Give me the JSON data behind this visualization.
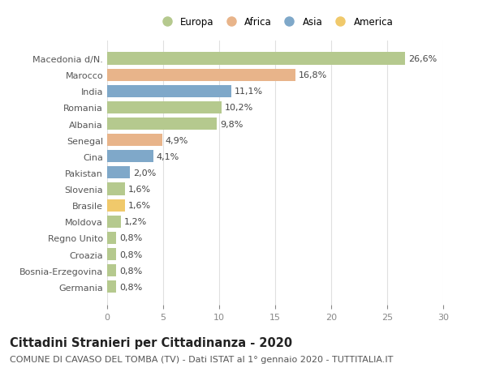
{
  "categories": [
    "Macedonia d/N.",
    "Marocco",
    "India",
    "Romania",
    "Albania",
    "Senegal",
    "Cina",
    "Pakistan",
    "Slovenia",
    "Brasile",
    "Moldova",
    "Regno Unito",
    "Croazia",
    "Bosnia-Erzegovina",
    "Germania"
  ],
  "values": [
    26.6,
    16.8,
    11.1,
    10.2,
    9.8,
    4.9,
    4.1,
    2.0,
    1.6,
    1.6,
    1.2,
    0.8,
    0.8,
    0.8,
    0.8
  ],
  "labels": [
    "26,6%",
    "16,8%",
    "11,1%",
    "10,2%",
    "9,8%",
    "4,9%",
    "4,1%",
    "2,0%",
    "1,6%",
    "1,6%",
    "1,2%",
    "0,8%",
    "0,8%",
    "0,8%",
    "0,8%"
  ],
  "continents": [
    "Europa",
    "Africa",
    "Asia",
    "Europa",
    "Europa",
    "Africa",
    "Asia",
    "Asia",
    "Europa",
    "America",
    "Europa",
    "Europa",
    "Europa",
    "Europa",
    "Europa"
  ],
  "continent_colors": {
    "Europa": "#b5c98e",
    "Africa": "#e8b48a",
    "Asia": "#7fa8c9",
    "America": "#f0c96b"
  },
  "legend_order": [
    "Europa",
    "Africa",
    "Asia",
    "America"
  ],
  "title": "Cittadini Stranieri per Cittadinanza - 2020",
  "subtitle": "COMUNE DI CAVASO DEL TOMBA (TV) - Dati ISTAT al 1° gennaio 2020 - TUTTITALIA.IT",
  "xlim": [
    0,
    30
  ],
  "xticks": [
    0,
    5,
    10,
    15,
    20,
    25,
    30
  ],
  "background_color": "#ffffff",
  "grid_color": "#e0e0e0",
  "title_fontsize": 10.5,
  "subtitle_fontsize": 8.0,
  "label_fontsize": 8.0,
  "tick_fontsize": 8.0,
  "legend_fontsize": 8.5
}
